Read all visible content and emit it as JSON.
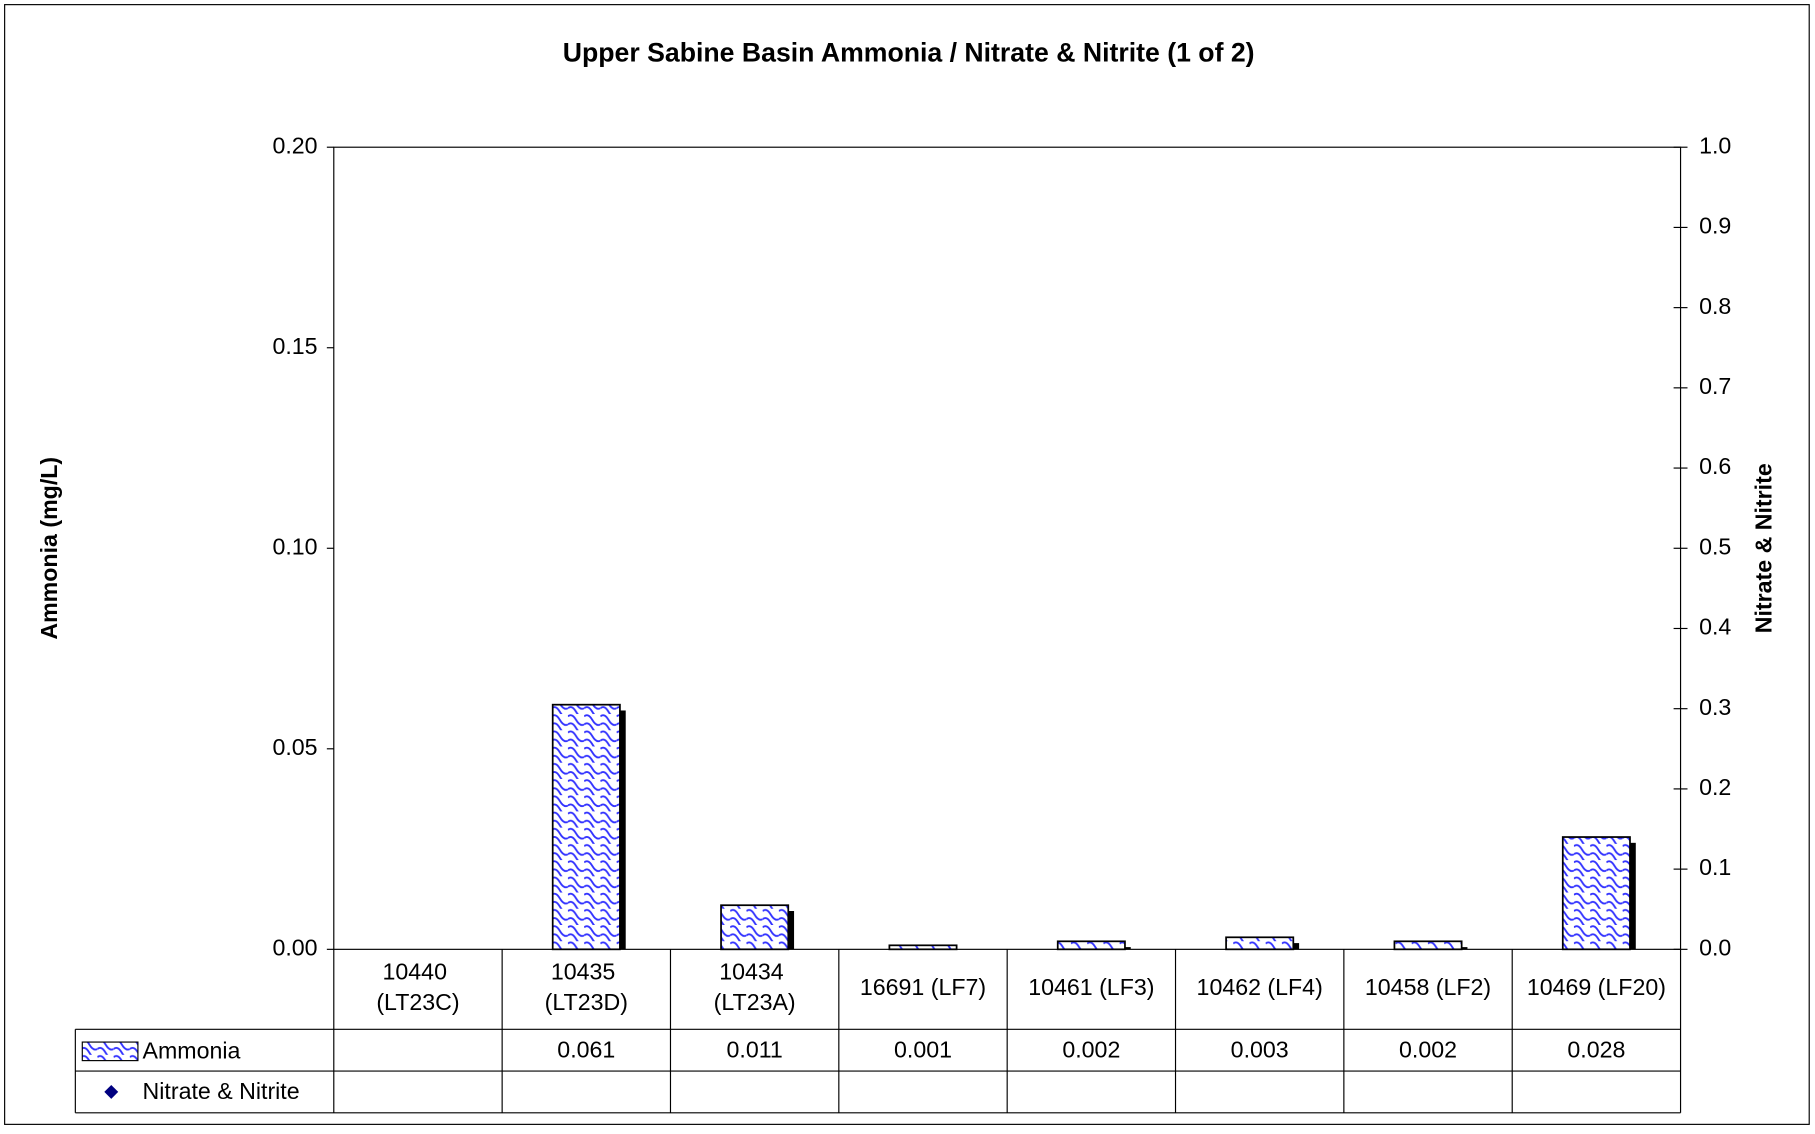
{
  "chart_data": {
    "type": "bar",
    "title": "Upper Sabine Basin Ammonia / Nitrate & Nitrite (1 of 2)",
    "y_label": "Ammonia (mg/L)",
    "y2_label": "Nitrate & Nitrite",
    "categories": [
      "10440 (LT23C)",
      "10435 (LT23D)",
      "10434 (LT23A)",
      "16691 (LF7)",
      "10461 (LF3)",
      "10462 (LF4)",
      "10458 (LF2)",
      "10469 (LF20)"
    ],
    "series": [
      {
        "name": "Ammonia",
        "color": "#3333ff",
        "values": [
          null,
          0.061,
          0.011,
          0.001,
          0.002,
          0.003,
          0.002,
          0.028
        ]
      },
      {
        "name": "Nitrate & Nitrite",
        "color": "#000080",
        "axis": "y2",
        "values": [
          null,
          null,
          null,
          null,
          null,
          null,
          null,
          null
        ]
      }
    ],
    "ylim": [
      0,
      0.2
    ],
    "yticks": [
      {
        "value": 0,
        "label": "0.00"
      },
      {
        "value": 0.05,
        "label": "0.05"
      },
      {
        "value": 0.1,
        "label": "0.10"
      },
      {
        "value": 0.15,
        "label": "0.15"
      },
      {
        "value": 0.2,
        "label": "0.20"
      }
    ],
    "y2lim": [
      0,
      1
    ],
    "y2ticks": [
      {
        "value": 0,
        "label": "0.0"
      },
      {
        "value": 0.1,
        "label": "0.1"
      },
      {
        "value": 0.2,
        "label": "0.2"
      },
      {
        "value": 0.3,
        "label": "0.3"
      },
      {
        "value": 0.4,
        "label": "0.4"
      },
      {
        "value": 0.5,
        "label": "0.5"
      },
      {
        "value": 0.6,
        "label": "0.6"
      },
      {
        "value": 0.7,
        "label": "0.7"
      },
      {
        "value": 0.8,
        "label": "0.8"
      },
      {
        "value": 0.9,
        "label": "0.9"
      },
      {
        "value": 1,
        "label": "1.0"
      }
    ],
    "grid": false
  }
}
